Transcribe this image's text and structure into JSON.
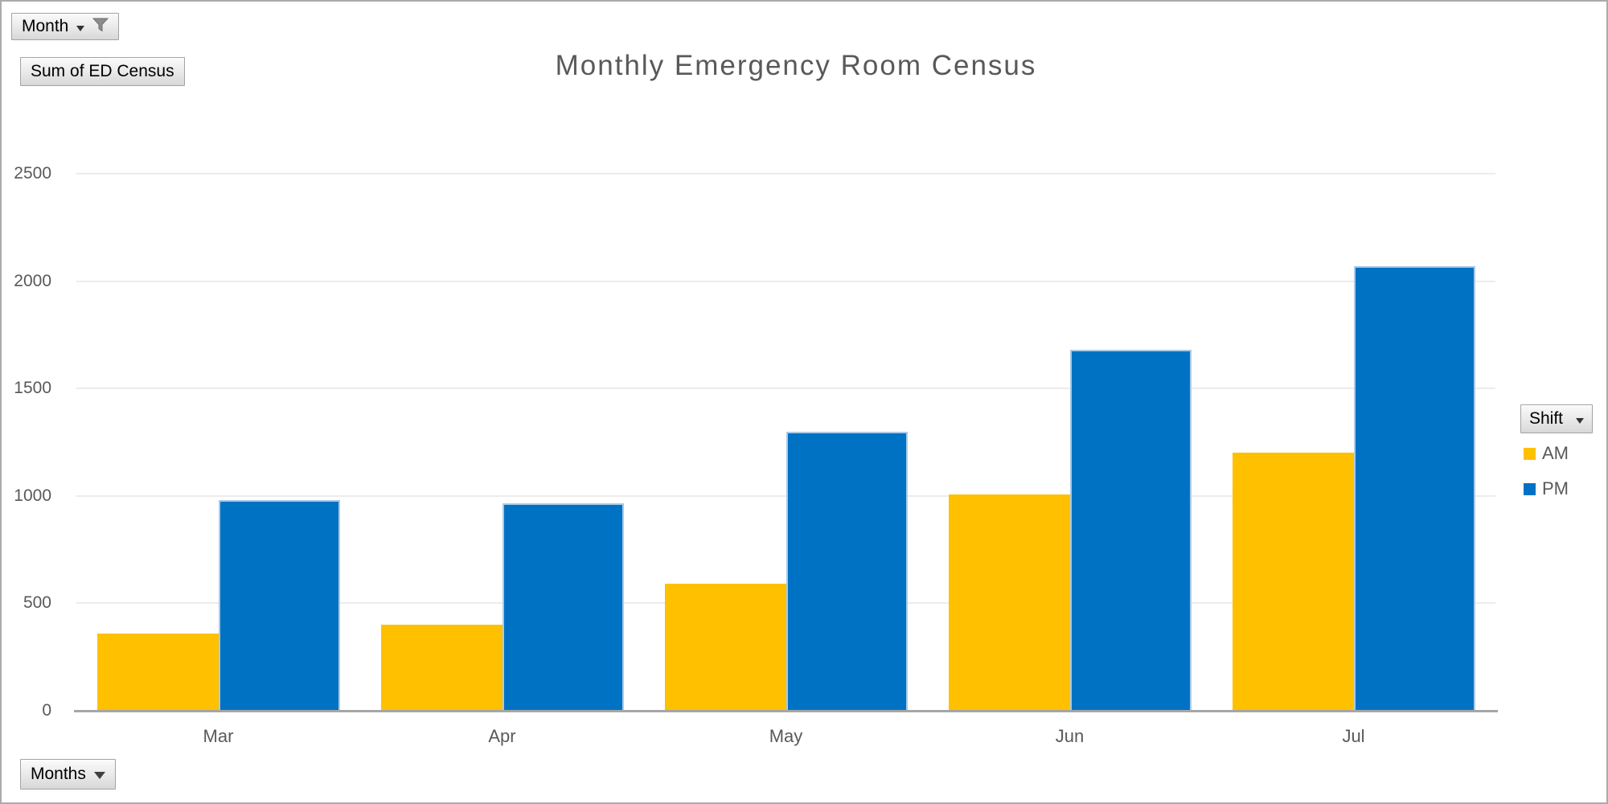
{
  "title": "Monthly Emergency Room Census",
  "field_buttons": {
    "filter": {
      "label": "Month"
    },
    "value": {
      "label": "Sum of ED Census"
    },
    "legend": {
      "label": "Shift"
    },
    "axis": {
      "label": "Months"
    }
  },
  "chart_data": {
    "type": "bar",
    "title": "Monthly Emergency Room Census",
    "categories": [
      "Mar",
      "Apr",
      "May",
      "Jun",
      "Jul"
    ],
    "series": [
      {
        "name": "AM",
        "color": "#FFC000",
        "values": [
          360,
          400,
          590,
          1005,
          1200
        ]
      },
      {
        "name": "PM",
        "color": "#0072C4",
        "edge_color": "#A9CBE8",
        "values": [
          980,
          965,
          1300,
          1680,
          2070
        ]
      }
    ],
    "xlabel": "",
    "ylabel": "",
    "ylim": [
      0,
      2500
    ],
    "yticks": [
      0,
      500,
      1000,
      1500,
      2000,
      2500
    ],
    "grid": true,
    "legend_position": "right"
  },
  "colors": {
    "am": "#FFC000",
    "pm": "#0072C4",
    "title_text": "#595959",
    "axis_text": "#595959",
    "gridline": "#ECECEC",
    "axis_line": "#A6A6A6",
    "window_border": "#ABABAB"
  }
}
